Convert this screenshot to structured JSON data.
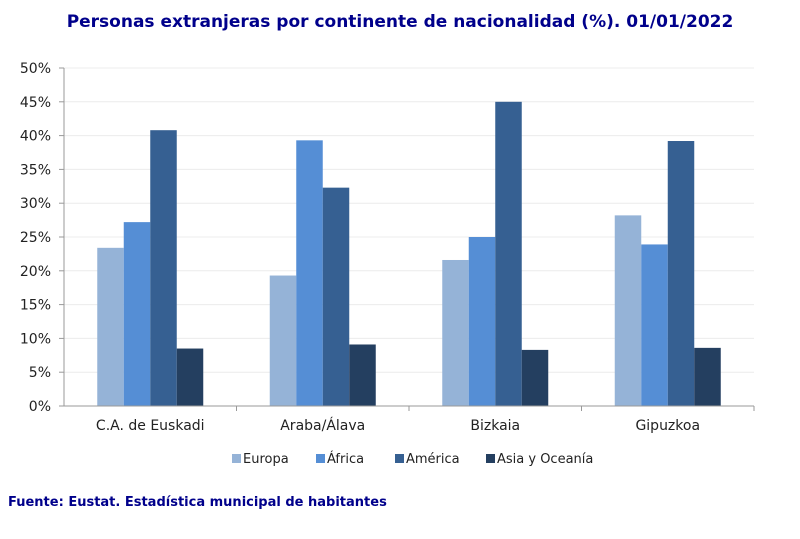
{
  "chart_data": {
    "type": "bar",
    "title": "Personas extranjeras por continente de nacionalidad (%). 01/01/2022",
    "categories": [
      "C.A. de Euskadi",
      "Araba/Álava",
      "Bizkaia",
      "Gipuzkoa"
    ],
    "series": [
      {
        "name": "Europa",
        "color": "#95b3d7",
        "values": [
          23.4,
          19.3,
          21.6,
          28.2
        ]
      },
      {
        "name": "África",
        "color": "#558ed5",
        "values": [
          27.2,
          39.3,
          25.0,
          23.9
        ]
      },
      {
        "name": "América",
        "color": "#366092",
        "values": [
          40.8,
          32.3,
          45.0,
          39.2
        ]
      },
      {
        "name": "Asia y Oceanía",
        "color": "#243f60",
        "values": [
          8.5,
          9.1,
          8.3,
          8.6
        ]
      }
    ],
    "yticks": [
      "0%",
      "5%",
      "10%",
      "15%",
      "20%",
      "25%",
      "30%",
      "35%",
      "40%",
      "45%",
      "50%"
    ],
    "ylim": [
      0,
      50
    ],
    "grid": true,
    "legend": "bottom"
  },
  "source": "Fuente: Eustat. Estadística municipal de habitantes"
}
